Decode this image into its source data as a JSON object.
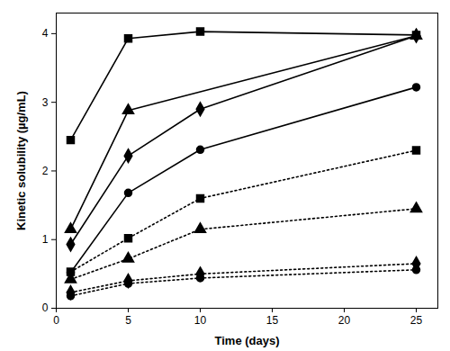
{
  "chart_data": {
    "type": "line",
    "xlabel": "Time (days)",
    "ylabel": "Kinetic solubility (µg/mL)",
    "xlim": [
      0,
      26.5
    ],
    "xticks": [
      0,
      5,
      10,
      15,
      20,
      25
    ],
    "ylim": [
      0,
      4.3
    ],
    "yticks": [
      0,
      1,
      2,
      3,
      4
    ],
    "series": [
      {
        "color": "#000000",
        "marker": "square",
        "line_style": "solid",
        "x": [
          1,
          5,
          10,
          25
        ],
        "values": [
          2.45,
          3.93,
          4.03,
          3.98
        ]
      },
      {
        "color": "#000000",
        "marker": "triangle",
        "line_style": "solid",
        "x": [
          1,
          5,
          25
        ],
        "values": [
          1.15,
          2.88,
          3.97
        ]
      },
      {
        "color": "#000000",
        "marker": "diamond",
        "line_style": "solid",
        "x": [
          1,
          5,
          10,
          25
        ],
        "values": [
          0.93,
          2.22,
          2.9,
          3.97
        ]
      },
      {
        "color": "#000000",
        "marker": "circle",
        "line_style": "solid",
        "x": [
          1,
          5,
          10,
          25
        ],
        "values": [
          0.52,
          1.68,
          2.31,
          3.22
        ]
      },
      {
        "color": "#000000",
        "marker": "square",
        "line_style": "dotted",
        "x": [
          1,
          5,
          10,
          25
        ],
        "values": [
          0.53,
          1.02,
          1.6,
          2.3
        ]
      },
      {
        "color": "#000000",
        "marker": "triangle",
        "line_style": "dotted",
        "x": [
          1,
          5,
          10,
          25
        ],
        "values": [
          0.42,
          0.72,
          1.15,
          1.45
        ]
      },
      {
        "color": "#000000",
        "marker": "diamond",
        "line_style": "dotted",
        "x": [
          1,
          5,
          10,
          25
        ],
        "values": [
          0.23,
          0.4,
          0.5,
          0.65
        ]
      },
      {
        "color": "#000000",
        "marker": "circle",
        "line_style": "dotted",
        "x": [
          1,
          5,
          10,
          25
        ],
        "values": [
          0.18,
          0.36,
          0.44,
          0.56
        ]
      }
    ]
  }
}
